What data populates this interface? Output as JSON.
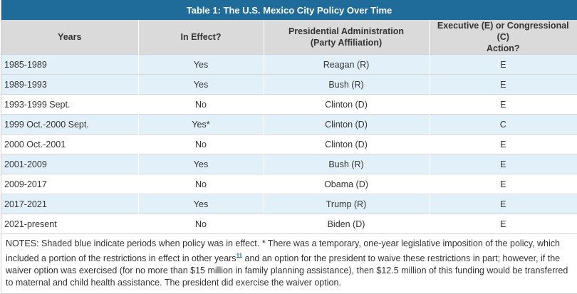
{
  "title": "Table 1: The U.S. Mexico City Policy Over Time",
  "headers": [
    "Years",
    "In Effect?",
    "Presidential Administration (Party Affiliation)",
    "Executive (E) or Congressional (C) Action?"
  ],
  "rows": [
    {
      "years": "1985-1989",
      "in_effect": "Yes",
      "admin": "Reagan (R)",
      "action": "E",
      "shaded": true
    },
    {
      "years": "1989-1993",
      "in_effect": "Yes",
      "admin": "Bush (R)",
      "action": "E",
      "shaded": true
    },
    {
      "years": "1993-1999 Sept.",
      "in_effect": "No",
      "admin": "Clinton (D)",
      "action": "E",
      "shaded": false
    },
    {
      "years": "1999 Oct.-2000 Sept.",
      "in_effect": "Yes*",
      "admin": "Clinton (D)",
      "action": "C",
      "shaded": true
    },
    {
      "years": "2000 Oct.-2001",
      "in_effect": "No",
      "admin": "Clinton (D)",
      "action": "E",
      "shaded": false
    },
    {
      "years": "2001-2009",
      "in_effect": "Yes",
      "admin": "Bush (R)",
      "action": "E",
      "shaded": true
    },
    {
      "years": "2009-2017",
      "in_effect": "No",
      "admin": "Obama (D)",
      "action": "E",
      "shaded": false
    },
    {
      "years": "2017-2021",
      "in_effect": "Yes",
      "admin": "Trump (R)",
      "action": "E",
      "shaded": true
    },
    {
      "years": "2021-present",
      "in_effect": "No",
      "admin": "Biden (D)",
      "action": "E",
      "shaded": false
    }
  ],
  "notes": {
    "part1": "NOTES: Shaded blue indicate periods when policy was in effect. * There was a temporary, one-year legislative imposition of the policy, which included a portion of the restrictions in effect in other years",
    "footnote": "11",
    "part2": " and an option for the president to waive these restrictions in part; however, if the waiver option was exercised (for no more than $15 million in family planning assistance), then $12.5 million of this funding would be transferred to maternal and child health assistance. The president did exercise the waiver option."
  },
  "colors": {
    "title_bg": "#1f6b9a",
    "header_bg": "#dadada",
    "shaded_row": "#e2f0f9"
  }
}
